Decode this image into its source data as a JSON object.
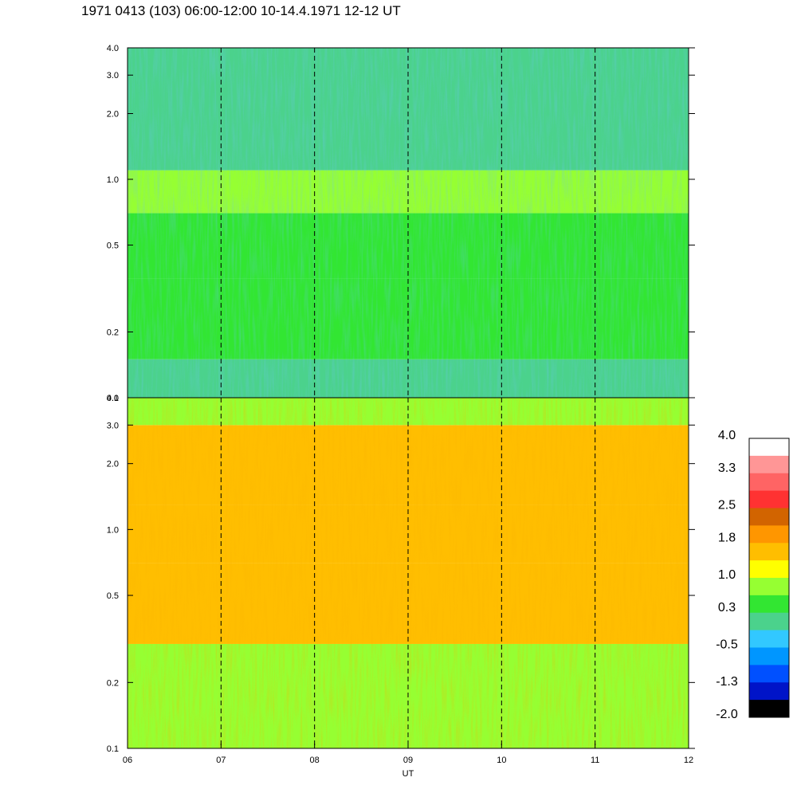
{
  "title": "1971 0413 (103) 06:00-12:00 10-14.4.1971  12-12 UT",
  "chart_data": [
    {
      "type": "heatmap",
      "panel": "upper",
      "y_scale": "log",
      "ylim": [
        0.1,
        4.0
      ],
      "yticks": [
        "0.1",
        "0.2",
        "0.5",
        "1.0",
        "2.0",
        "3.0",
        "4.0"
      ],
      "y_values": [
        0.1,
        0.2,
        0.5,
        1.0,
        2.0,
        3.0,
        4.0
      ],
      "dominant_levels_by_band": [
        {
          "y_range": [
            0.1,
            0.15
          ],
          "level": 0.0
        },
        {
          "y_range": [
            0.15,
            0.35
          ],
          "level": 0.3
        },
        {
          "y_range": [
            0.35,
            0.7
          ],
          "level": 0.5
        },
        {
          "y_range": [
            0.7,
            1.1
          ],
          "level": 0.8
        },
        {
          "y_range": [
            1.1,
            4.0
          ],
          "level": 0.2
        }
      ]
    },
    {
      "type": "heatmap",
      "panel": "lower",
      "y_scale": "log",
      "ylim": [
        0.1,
        4.0
      ],
      "yticks": [
        "0.1",
        "0.2",
        "0.5",
        "1.0",
        "2.0",
        "3.0",
        "4.0"
      ],
      "y_values": [
        0.1,
        0.2,
        0.5,
        1.0,
        2.0,
        3.0,
        4.0
      ],
      "dominant_levels_by_band": [
        {
          "y_range": [
            0.1,
            0.3
          ],
          "level": 1.0
        },
        {
          "y_range": [
            0.3,
            0.7
          ],
          "level": 1.5
        },
        {
          "y_range": [
            0.7,
            1.3
          ],
          "level": 1.6
        },
        {
          "y_range": [
            1.3,
            3.0
          ],
          "level": 1.6
        },
        {
          "y_range": [
            3.0,
            4.0
          ],
          "level": 0.9
        }
      ]
    }
  ],
  "x_axis": {
    "label": "UT",
    "ticks": [
      "06",
      "07",
      "08",
      "09",
      "10",
      "11",
      "12"
    ],
    "values": [
      6,
      7,
      8,
      9,
      10,
      11,
      12
    ],
    "dashed_gridlines_at": [
      7,
      8,
      9,
      10,
      11
    ]
  },
  "colorbar": {
    "labels": [
      "4.0",
      "3.3",
      "2.5",
      "1.8",
      "1.0",
      "0.3",
      "-0.5",
      "-1.3",
      "-2.0"
    ],
    "label_values": [
      4.0,
      3.3,
      2.5,
      1.8,
      1.0,
      0.3,
      -0.5,
      -1.3,
      -2.0
    ],
    "range": [
      -2.0,
      4.0
    ],
    "colors_top_to_bottom": [
      "#ffffff",
      "#ff9696",
      "#ff6464",
      "#ff3232",
      "#d26400",
      "#ff9600",
      "#ffbe00",
      "#ffff00",
      "#96ff32",
      "#32e632",
      "#4bd28c",
      "#32c8ff",
      "#0096ff",
      "#0050ff",
      "#0014c8",
      "#000000"
    ]
  }
}
